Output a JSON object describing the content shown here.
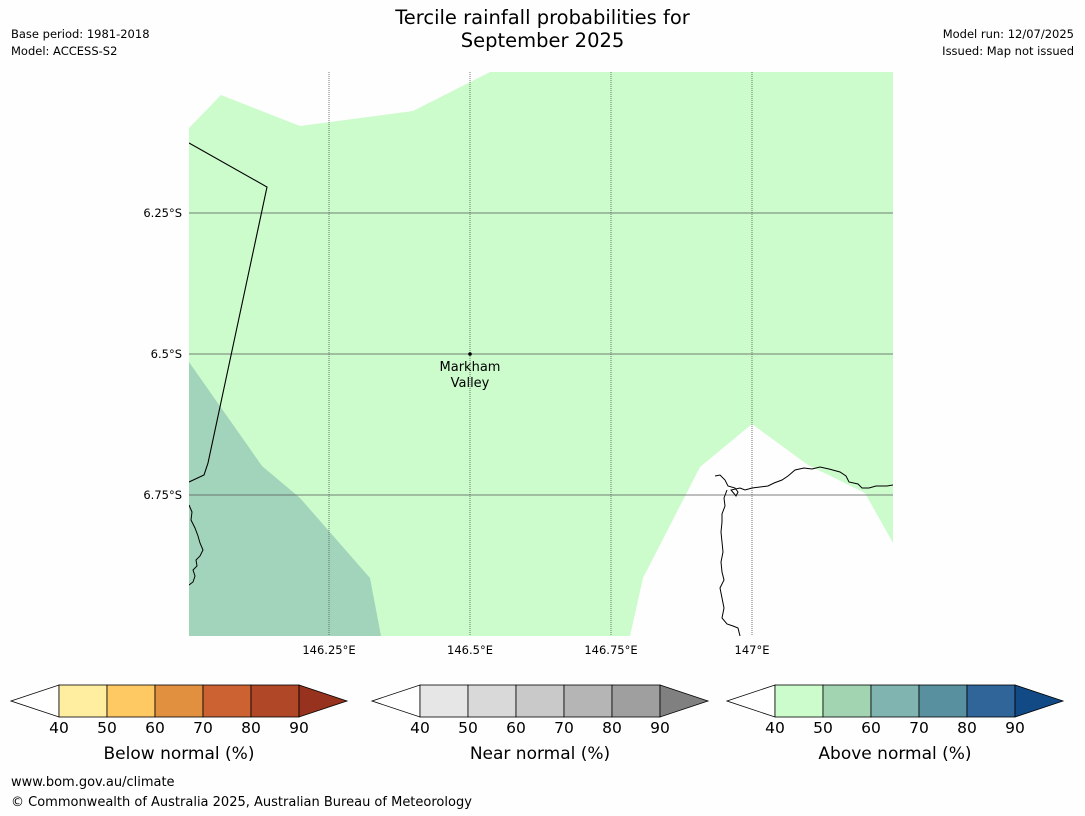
{
  "header": {
    "title_line1": "Tercile rainfall probabilities for",
    "title_line2": "September 2025",
    "base_period": "Base period: 1981-2018",
    "model": "Model: ACCESS-S2",
    "model_run": "Model run: 12/07/2025",
    "issued": "Issued: Map not issued"
  },
  "map": {
    "lat_labels": [
      "6.25°S",
      "6.5°S",
      "6.75°S"
    ],
    "lon_labels": [
      "146.25°E",
      "146.5°E",
      "146.75°E",
      "147°E"
    ],
    "place": {
      "name_line1": "Markham",
      "name_line2": "Valley",
      "lat": -6.5,
      "lon": 146.5
    },
    "colors": {
      "above_40_50": "#ccfccc",
      "above_50_60": "#a2d4bb",
      "land_border": "#000000",
      "no_data": "#fefefe"
    }
  },
  "legends": [
    {
      "title": "Below normal (%)",
      "ticks": [
        "40",
        "50",
        "60",
        "70",
        "80",
        "90"
      ],
      "colors": [
        "#ffeda0",
        "#fec863",
        "#e0903f",
        "#cc6232",
        "#b04727",
        "#96321d"
      ],
      "under_color": "#ffffff"
    },
    {
      "title": "Near normal (%)",
      "ticks": [
        "40",
        "50",
        "60",
        "70",
        "80",
        "90"
      ],
      "colors": [
        "#e6e6e6",
        "#d9d9d9",
        "#c9c9c9",
        "#b5b5b5",
        "#9f9f9f",
        "#808080"
      ],
      "under_color": "#ffffff"
    },
    {
      "title": "Above normal (%)",
      "ticks": [
        "40",
        "50",
        "60",
        "70",
        "80",
        "90"
      ],
      "colors": [
        "#ccfccc",
        "#a2d4b2",
        "#80b4b0",
        "#5990a0",
        "#2f6599",
        "#124a85"
      ],
      "under_color": "#ffffff"
    }
  ],
  "footer": {
    "url": "www.bom.gov.au/climate",
    "copyright": "© Commonwealth of Australia 2025, Australian Bureau of Meteorology"
  }
}
